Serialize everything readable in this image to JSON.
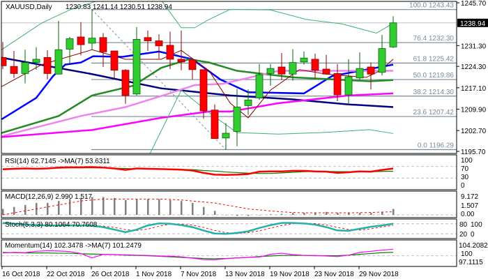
{
  "header": {
    "symbol": "XAUUSD,Daily",
    "ohlc": "1230.83 1241.14 1230.51 1238.94"
  },
  "colors": {
    "bull": "#32cd32",
    "bear": "#ff0000",
    "wick_bull": "#006400",
    "wick_bear": "#8b0000",
    "ma_fast": "#0000ff",
    "ma_slow": "#000080",
    "ma_green": "#228b22",
    "ma_violet": "#ee82ee",
    "ma_magenta": "#ff00ff",
    "ma_thin": "#8b0000",
    "bands": "#3cb371",
    "fib": "#778899"
  },
  "price_axis": {
    "min": 1195.7,
    "max": 1245.7,
    "labels": [
      "1245.70",
      "1231.30",
      "1224.30",
      "1217.10",
      "1209.90",
      "1202.70",
      "1195.70"
    ],
    "current": "1238.94"
  },
  "fib_levels": [
    {
      "label": "100.0 1243.43",
      "price": 1243.43
    },
    {
      "label": "76.4 1232.30",
      "price": 1232.3
    },
    {
      "label": "61.8 1225.42",
      "price": 1225.42
    },
    {
      "label": "50.0 1219.86",
      "price": 1219.86
    },
    {
      "label": "38.2 1214.30",
      "price": 1214.3
    },
    {
      "label": "23.6 1207.42",
      "price": 1207.42
    },
    {
      "label": "0.0 1196.29",
      "price": 1196.29
    }
  ],
  "candles": [
    [
      1227.3,
      1232.5,
      1223.4,
      1224.5
    ],
    [
      1224.3,
      1229.5,
      1220.4,
      1221.9
    ],
    [
      1221.9,
      1229.9,
      1218.6,
      1225.6
    ],
    [
      1225.6,
      1230.8,
      1223.2,
      1226.7
    ],
    [
      1227.3,
      1229.7,
      1219.9,
      1221.9
    ],
    [
      1221.7,
      1239.6,
      1221.7,
      1229.9
    ],
    [
      1230.1,
      1234.2,
      1225.1,
      1233.6
    ],
    [
      1234.2,
      1239.2,
      1228.0,
      1231.6
    ],
    [
      1232.1,
      1243.5,
      1229.9,
      1233.8
    ],
    [
      1234.0,
      1235.5,
      1224.1,
      1229.2
    ],
    [
      1229.5,
      1229.5,
      1219.9,
      1223.0
    ],
    [
      1223.0,
      1223.4,
      1211.7,
      1214.5
    ],
    [
      1215.0,
      1237.5,
      1214.5,
      1233.4
    ],
    [
      1234.0,
      1236.4,
      1229.5,
      1232.9
    ],
    [
      1232.9,
      1235.1,
      1226.9,
      1231.2
    ],
    [
      1231.4,
      1236.0,
      1223.4,
      1226.7
    ],
    [
      1226.7,
      1236.4,
      1223.0,
      1225.8
    ],
    [
      1226.5,
      1226.5,
      1219.9,
      1223.2
    ],
    [
      1223.2,
      1223.2,
      1206.7,
      1209.3
    ],
    [
      1209.6,
      1211.5,
      1200.0,
      1200.0
    ],
    [
      1200.2,
      1205.2,
      1196.3,
      1201.8
    ],
    [
      1202.4,
      1216.7,
      1197.4,
      1210.6
    ],
    [
      1211.1,
      1216.5,
      1208.0,
      1213.0
    ],
    [
      1213.7,
      1225.1,
      1213.0,
      1221.5
    ],
    [
      1221.9,
      1225.1,
      1217.8,
      1223.6
    ],
    [
      1224.1,
      1228.8,
      1219.7,
      1221.7
    ],
    [
      1221.7,
      1230.1,
      1219.5,
      1225.6
    ],
    [
      1225.8,
      1229.3,
      1224.9,
      1227.1
    ],
    [
      1226.7,
      1228.6,
      1220.2,
      1223.0
    ],
    [
      1223.4,
      1228.2,
      1221.5,
      1221.7
    ],
    [
      1221.9,
      1225.1,
      1212.6,
      1214.7
    ],
    [
      1214.7,
      1226.7,
      1211.3,
      1220.8
    ],
    [
      1220.4,
      1229.0,
      1219.9,
      1223.6
    ],
    [
      1224.1,
      1225.6,
      1216.5,
      1221.7
    ],
    [
      1222.3,
      1234.9,
      1221.2,
      1230.3
    ],
    [
      1230.83,
      1241.14,
      1230.51,
      1238.94
    ]
  ],
  "overlays": [
    {
      "name": "ma-fast-line",
      "color": "#0000ff",
      "width": 2.5,
      "pts": [
        [
          -0.1,
          1206.5
        ],
        [
          3,
          1213.7
        ],
        [
          4.5,
          1221.0
        ],
        [
          5.6,
          1224.9
        ],
        [
          7,
          1225.6
        ],
        [
          8.1,
          1227.7
        ],
        [
          10.7,
          1227.5
        ],
        [
          14,
          1229.3
        ],
        [
          17,
          1226.7
        ],
        [
          19.5,
          1219.9
        ],
        [
          22,
          1215.6
        ],
        [
          27,
          1215.2
        ],
        [
          29.5,
          1221.0
        ],
        [
          32,
          1222.8
        ],
        [
          35,
          1224.9
        ]
      ]
    },
    {
      "name": "ma-slow-line",
      "color": "#000080",
      "width": 2.5,
      "pts": [
        [
          -0.2,
          1227.3
        ],
        [
          8,
          1221.7
        ],
        [
          14.2,
          1216.9
        ],
        [
          20.4,
          1214.5
        ],
        [
          26,
          1213.2
        ],
        [
          31,
          1211.5
        ],
        [
          35,
          1210.6
        ]
      ]
    },
    {
      "name": "ma-green-line",
      "color": "#228b22",
      "width": 2.5,
      "pts": [
        [
          -0.2,
          1201.8
        ],
        [
          5,
          1207.6
        ],
        [
          8,
          1214.5
        ],
        [
          11.7,
          1217.8
        ],
        [
          14.2,
          1223.8
        ],
        [
          16.7,
          1226.7
        ],
        [
          18.5,
          1225.6
        ],
        [
          21,
          1222.8
        ],
        [
          26,
          1220.6
        ],
        [
          32.9,
          1219.3
        ],
        [
          35,
          1219.7
        ]
      ]
    },
    {
      "name": "ma-violet-line",
      "color": "#ee82ee",
      "width": 2.5,
      "pts": [
        [
          -0.2,
          1200.7
        ],
        [
          7,
          1207.6
        ],
        [
          11,
          1210.6
        ],
        [
          14.7,
          1214.9
        ],
        [
          17.2,
          1218.0
        ],
        [
          19.7,
          1218.4
        ],
        [
          24.7,
          1222.8
        ],
        [
          31,
          1222.8
        ],
        [
          35,
          1222.8
        ]
      ]
    },
    {
      "name": "ma-magenta-line",
      "color": "#ff00ff",
      "width": 2.5,
      "pts": [
        [
          -0.2,
          1200.5
        ],
        [
          8,
          1202.9
        ],
        [
          14.2,
          1207.0
        ],
        [
          18.5,
          1209.1
        ],
        [
          20.4,
          1209.1
        ],
        [
          24.7,
          1211.9
        ],
        [
          31,
          1214.5
        ],
        [
          35,
          1215.2
        ]
      ]
    },
    {
      "name": "ma-thin-line",
      "color": "#8b0000",
      "width": 1,
      "pts": [
        [
          -0.2,
          1217.3
        ],
        [
          3.5,
          1224.9
        ],
        [
          8,
          1229.9
        ],
        [
          11,
          1226.7
        ],
        [
          14.2,
          1226.7
        ],
        [
          16,
          1229.7
        ],
        [
          18.5,
          1222.8
        ],
        [
          20.4,
          1211.9
        ],
        [
          22,
          1207.0
        ],
        [
          24,
          1216.3
        ],
        [
          26.6,
          1223.2
        ],
        [
          29,
          1221.7
        ],
        [
          32.6,
          1220.6
        ],
        [
          33.8,
          1222.8
        ],
        [
          35,
          1226.7
        ]
      ]
    },
    {
      "name": "bollinger-upper-line",
      "color": "#3cb371",
      "width": 1,
      "pts": [
        [
          -0.2,
          1229.7
        ],
        [
          3.5,
          1238.9
        ],
        [
          6,
          1243.3
        ],
        [
          9,
          1247.0
        ],
        [
          14.2,
          1246.6
        ],
        [
          16,
          1237.3
        ],
        [
          17.2,
          1237.3
        ],
        [
          18.5,
          1240.1
        ],
        [
          20.4,
          1243.5
        ],
        [
          24,
          1243.3
        ],
        [
          27.2,
          1240.1
        ],
        [
          30.4,
          1238.6
        ],
        [
          33.5,
          1235.5
        ],
        [
          35,
          1238.8
        ]
      ]
    },
    {
      "name": "bollinger-lower-line",
      "color": "#3cb371",
      "width": 1,
      "pts": [
        [
          13.2,
          1195.0
        ],
        [
          16,
          1216.3
        ],
        [
          18.5,
          1208.7
        ],
        [
          21,
          1202.0
        ],
        [
          24.7,
          1201.5
        ],
        [
          28.5,
          1202.0
        ],
        [
          32.9,
          1203.0
        ],
        [
          35,
          1201.7
        ]
      ]
    }
  ],
  "rsi": {
    "label": "RSI(14) 62.7145  ->MA(7) 53.6311",
    "levels": [
      "100",
      "70",
      "30",
      "0"
    ],
    "values": [
      60,
      62,
      63,
      62,
      63,
      66,
      67,
      67,
      68,
      66,
      63,
      58,
      63,
      62,
      61,
      60,
      59,
      56,
      48,
      42,
      41,
      42,
      44,
      52,
      53,
      53,
      55,
      55,
      53,
      52,
      48,
      50,
      53,
      52,
      58,
      62.7
    ],
    "ma": [
      62,
      62,
      63,
      63,
      64,
      64,
      65,
      65,
      65,
      65,
      64,
      63,
      62,
      61,
      61,
      60,
      60,
      59,
      56,
      54,
      51,
      49,
      47,
      46,
      46,
      48,
      50,
      52,
      53,
      53,
      52,
      52,
      52,
      52,
      53,
      53.6
    ]
  },
  "macd": {
    "label": "MACD(12,26,9) 2.990 1.517",
    "axis": [
      "9.172",
      "1.507",
      "0.00"
    ],
    "hist": [
      3,
      4,
      5,
      6,
      6,
      7,
      8,
      8.5,
      9,
      9,
      8.5,
      7.5,
      8,
      8,
      8,
      7.5,
      7,
      6,
      4,
      2,
      0,
      -0.5,
      -0.5,
      0,
      0.3,
      0.5,
      1,
      1,
      1.2,
      1.5,
      1,
      1.2,
      1,
      1,
      1.5,
      2.99
    ],
    "signal": [
      0,
      1,
      2,
      3,
      4,
      5,
      6,
      7,
      7.5,
      8,
      8,
      8,
      8,
      8,
      8,
      7.8,
      7.5,
      7,
      6.5,
      6,
      5,
      4,
      3,
      2.5,
      2,
      1.5,
      1.2,
      1,
      1,
      1,
      1,
      1,
      1.1,
      1.2,
      1.4,
      1.517
    ]
  },
  "stoch": {
    "label": "Stoch(5,3,3) 80.1064 70.7608",
    "axis": [
      "80",
      "100",
      "20",
      "0"
    ],
    "main": [
      85,
      80,
      75,
      72,
      70,
      70,
      70,
      70,
      68,
      60,
      45,
      30,
      45,
      70,
      82,
      80,
      72,
      60,
      40,
      22,
      20,
      25,
      35,
      55,
      72,
      85,
      85,
      82,
      75,
      60,
      40,
      38,
      50,
      62,
      70,
      80.1
    ],
    "signal": [
      80,
      82,
      78,
      75,
      72,
      70,
      70,
      70,
      69,
      66,
      58,
      45,
      40,
      48,
      65,
      78,
      78,
      72,
      58,
      40,
      27,
      22,
      27,
      38,
      54,
      70,
      80,
      84,
      81,
      73,
      58,
      46,
      42,
      50,
      61,
      70.8
    ]
  },
  "momentum": {
    "label": "Momentum(14) 102.3478  ->MA(7) 101.2479",
    "axis": [
      "104.2082",
      "100",
      "97.1115"
    ],
    "values": [
      101.0,
      101.2,
      101.1,
      101.6,
      101.8,
      101.7,
      101.5,
      100.8,
      99.2,
      100.5,
      100.4,
      100.3,
      100.2,
      100.1,
      99.9,
      99.8,
      99.6,
      99.1,
      98.6,
      98.5,
      98.9,
      99.2,
      99.4,
      99.5,
      100.5,
      100.9,
      100.4,
      100.1,
      100.1,
      99.9,
      99.7,
      100.2,
      101.2,
      101.6,
      102.0,
      102.35
    ],
    "ma": [
      101.2,
      101.1,
      101.0,
      101.0,
      101.0,
      100.9,
      100.9,
      100.7,
      100.6,
      100.5,
      100.4,
      100.2,
      100.1,
      100.0,
      99.8,
      99.6,
      99.4,
      99.2,
      99.0,
      98.9,
      99.0,
      99.2,
      99.4,
      99.7,
      99.9,
      100.1,
      100.1,
      100.1,
      100.0,
      100.0,
      100.0,
      100.2,
      100.5,
      100.8,
      101.1,
      101.25
    ]
  },
  "dates": [
    "16 Oct 2018",
    "22 Oct 2018",
    "26 Oct 2018",
    "1 Nov 2018",
    "7 Nov 2018",
    "13 Nov 2018",
    "19 Nov 2018",
    "23 Nov 2018",
    "29 Nov 2018"
  ]
}
